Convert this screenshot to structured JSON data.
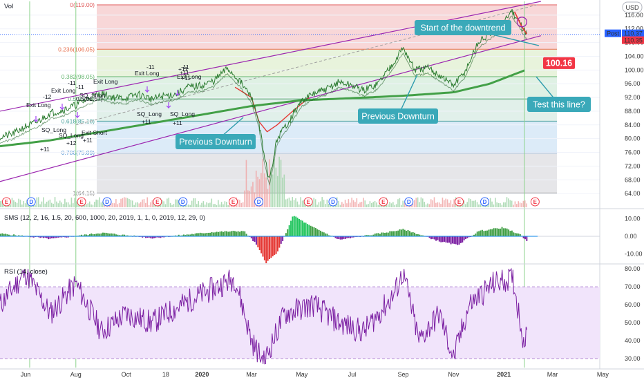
{
  "chart_data": {
    "type": "line",
    "panes": {
      "price": {
        "title": "Vol",
        "currency": "USD",
        "ylim": [
          60,
          120
        ],
        "yticks": [
          64,
          68,
          72,
          76,
          80,
          84,
          88,
          92,
          96,
          100,
          104,
          108,
          112,
          116
        ],
        "tick_labels": [
          "64.00",
          "68.00",
          "72.00",
          "76.00",
          "80.00",
          "84.00",
          "88.00",
          "92.00",
          "96.00",
          "100.00",
          "104.00",
          "108.00",
          "112.00",
          "116.00"
        ],
        "last_price_labels": [
          "110.37",
          "110.35"
        ],
        "post_label": "Post",
        "price_badge": "100.16",
        "fib_levels": [
          {
            "label": "0(119.00)",
            "value": 119.0
          },
          {
            "label": "0.236(106.05)",
            "value": 106.05
          },
          {
            "label": "0.382(98.05)",
            "value": 98.05
          },
          {
            "label": "0.5(91.57)",
            "value": 91.57
          },
          {
            "label": "0.618(85.10)",
            "value": 85.1
          },
          {
            "label": "0.786(75.89)",
            "value": 75.89
          },
          {
            "label": "1(64.15)",
            "value": 64.15
          }
        ],
        "price_series": {
          "x": [
            "2019-05-01",
            "2019-05-15",
            "2019-06-01",
            "2019-06-15",
            "2019-07-01",
            "2019-07-15",
            "2019-08-01",
            "2019-08-15",
            "2019-09-01",
            "2019-09-15",
            "2019-10-01",
            "2019-10-15",
            "2019-11-01",
            "2019-11-15",
            "2019-12-01",
            "2019-12-15",
            "2020-01-01",
            "2020-01-15",
            "2020-02-01",
            "2020-02-15",
            "2020-03-01",
            "2020-03-10",
            "2020-03-16",
            "2020-03-23",
            "2020-04-01",
            "2020-04-15",
            "2020-05-01",
            "2020-05-15",
            "2020-06-01",
            "2020-06-15",
            "2020-07-01",
            "2020-07-15",
            "2020-08-01",
            "2020-08-15",
            "2020-09-01",
            "2020-09-15",
            "2020-10-01",
            "2020-10-15",
            "2020-11-01",
            "2020-11-15",
            "2020-12-01",
            "2020-12-15",
            "2021-01-01",
            "2021-01-10",
            "2021-01-20",
            "2021-01-29"
          ],
          "values": [
            80.5,
            81.2,
            83.5,
            84.8,
            87.5,
            88.2,
            89.8,
            91.5,
            93.2,
            92.0,
            91.8,
            93.0,
            91.5,
            92.4,
            93.0,
            95.0,
            95.5,
            96.8,
            100.5,
            97.0,
            92.0,
            85.0,
            75.0,
            68.0,
            80.0,
            85.0,
            91.0,
            93.0,
            94.5,
            96.5,
            95.5,
            94.0,
            96.0,
            100.5,
            106.5,
            100.0,
            100.5,
            98.5,
            95.5,
            99.5,
            108.0,
            110.5,
            113.5,
            117.5,
            114.0,
            110.4
          ]
        },
        "sma_series": {
          "name": "",
          "x": [
            "2019-05-01",
            "2019-07-01",
            "2019-09-01",
            "2019-11-01",
            "2020-01-01",
            "2020-03-01",
            "2020-05-01",
            "2020-07-01",
            "2020-09-01",
            "2020-11-01",
            "2020-12-15",
            "2021-01-29"
          ],
          "values": [
            77.8,
            79.5,
            82.0,
            84.5,
            87.0,
            89.5,
            91.2,
            91.8,
            92.5,
            93.5,
            96.0,
            100.16
          ]
        },
        "channel": {
          "upper": [
            {
              "x": "2019-05-01",
              "y": 88.0
            },
            {
              "x": "2021-02-15",
              "y": 120.0
            }
          ],
          "lower": [
            {
              "x": "2019-05-01",
              "y": 67.5
            },
            {
              "x": "2021-02-15",
              "y": 110.0
            }
          ]
        },
        "signals": [
          "-12",
          "Exit Long",
          "-11",
          "Exit Long",
          "SQ_Long",
          "+11",
          "SQ_Long",
          "+12",
          "SQ_Short",
          "-11",
          "Exit Long",
          "0.5(91.57)",
          "Exit Short",
          "+11",
          "-11",
          "Exit Long",
          "SQ_Long",
          "+11",
          "+11",
          "Exit Long",
          "SQ_Long",
          "+11",
          "-11",
          "+11",
          "+11"
        ]
      },
      "sms": {
        "title": "SMS (12, 2, 16, 1.5, 20, 600, 1000, 20, 2019, 1, 1, 0, 2019, 12, 29, 0)",
        "ylim": [
          -15,
          15
        ],
        "yticks": [
          10,
          0,
          -10
        ],
        "tick_labels": [
          "10.00",
          "0.00",
          "-10.00"
        ]
      },
      "rsi": {
        "title": "RSI (14, close)",
        "ylim": [
          25,
          82
        ],
        "yticks": [
          80,
          70,
          60,
          50,
          40,
          30
        ],
        "tick_labels": [
          "80.00",
          "70.00",
          "60.00",
          "50.00",
          "40.00",
          "30.00"
        ],
        "band": [
          30,
          70
        ]
      }
    },
    "x_axis": {
      "labels": [
        "Jun",
        "Aug",
        "Oct",
        "18",
        "2020",
        "Mar",
        "May",
        "Jul",
        "Sep",
        "Nov",
        "2021",
        "Mar",
        "May"
      ],
      "label_dates": [
        "2019-06-01",
        "2019-08-01",
        "2019-10-01",
        "2019-11-18",
        "2020-01-01",
        "2020-03-01",
        "2020-05-01",
        "2020-07-01",
        "2020-09-01",
        "2020-11-01",
        "2021-01-01",
        "2021-03-01",
        "2021-05-01"
      ]
    },
    "events": [
      {
        "kind": "E",
        "x": "2019-04-28"
      },
      {
        "kind": "D",
        "x": "2019-05-28"
      },
      {
        "kind": "E",
        "x": "2019-07-28"
      },
      {
        "kind": "D",
        "x": "2019-08-28"
      },
      {
        "kind": "E",
        "x": "2019-10-28"
      },
      {
        "kind": "D",
        "x": "2019-11-28"
      },
      {
        "kind": "E",
        "x": "2020-01-28"
      },
      {
        "kind": "D",
        "x": "2020-02-28"
      },
      {
        "kind": "E",
        "x": "2020-04-28"
      },
      {
        "kind": "D",
        "x": "2020-05-28"
      },
      {
        "kind": "E",
        "x": "2020-07-28"
      },
      {
        "kind": "D",
        "x": "2020-08-28"
      },
      {
        "kind": "E",
        "x": "2020-10-28"
      },
      {
        "kind": "D",
        "x": "2020-11-28"
      },
      {
        "kind": "E",
        "x": "2021-01-28"
      }
    ],
    "annotations": [
      {
        "text": "Start of the downtrend"
      },
      {
        "text": "Previous Downturn"
      },
      {
        "text": "Previous Downturn"
      },
      {
        "text": "Test this line?"
      }
    ]
  }
}
